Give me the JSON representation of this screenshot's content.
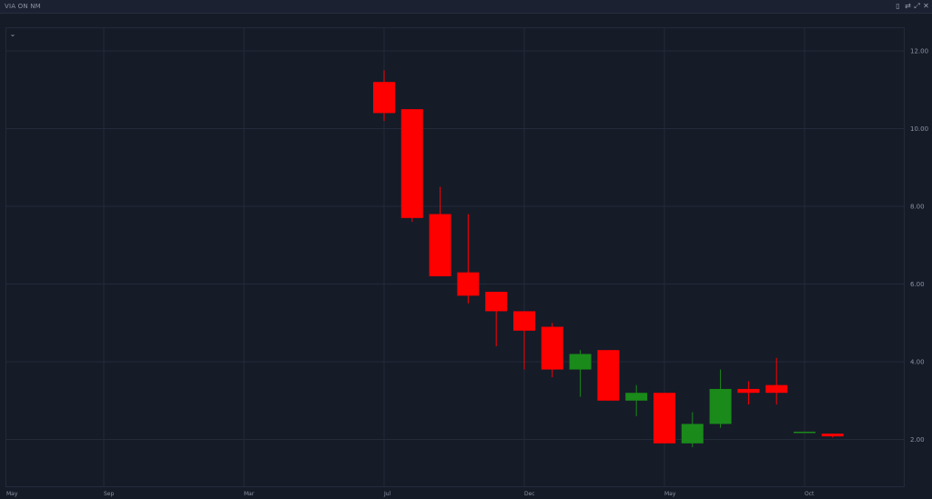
{
  "window": {
    "title": "VIA ON NM",
    "controls": [
      {
        "name": "bookmark-icon",
        "glyph": "▯"
      },
      {
        "name": "settings-icon",
        "glyph": "⇄"
      },
      {
        "name": "expand-icon",
        "glyph": "⤢"
      },
      {
        "name": "close-icon",
        "glyph": "✕"
      }
    ],
    "collapse_glyph": "⌄"
  },
  "chart_data": {
    "type": "candlestick",
    "title": "VIA ON NM",
    "ylim": [
      0.8,
      12.4
    ],
    "yticks": [
      2,
      4,
      6,
      8,
      10,
      12
    ],
    "ytick_labels": [
      "2.00",
      "4.00",
      "6.00",
      "8.00",
      "10.00",
      "12.00"
    ],
    "xtick_labels": [
      "May",
      "Sep",
      "Mar",
      "Jul",
      "Dec",
      "May",
      "Oct"
    ],
    "colors": {
      "up": "#1a8a1a",
      "down": "#ff0000",
      "grid": "#232a39",
      "background": "#161b28"
    },
    "grid": true,
    "candles": [
      {
        "index": 0,
        "open": 11.2,
        "high": 11.5,
        "low": 10.2,
        "close": 10.4
      },
      {
        "index": 1,
        "open": 10.5,
        "high": 10.5,
        "low": 7.6,
        "close": 7.7
      },
      {
        "index": 2,
        "open": 7.8,
        "high": 8.5,
        "low": 6.2,
        "close": 6.2
      },
      {
        "index": 3,
        "open": 6.3,
        "high": 7.8,
        "low": 5.5,
        "close": 5.7
      },
      {
        "index": 4,
        "open": 5.8,
        "high": 5.8,
        "low": 4.4,
        "close": 5.3
      },
      {
        "index": 5,
        "open": 5.3,
        "high": 5.3,
        "low": 3.8,
        "close": 4.8
      },
      {
        "index": 6,
        "open": 4.9,
        "high": 5.0,
        "low": 3.6,
        "close": 3.8
      },
      {
        "index": 7,
        "open": 3.8,
        "high": 4.3,
        "low": 3.1,
        "close": 4.2
      },
      {
        "index": 8,
        "open": 4.3,
        "high": 4.3,
        "low": 3.0,
        "close": 3.0
      },
      {
        "index": 9,
        "open": 3.0,
        "high": 3.4,
        "low": 2.6,
        "close": 3.2
      },
      {
        "index": 10,
        "open": 3.2,
        "high": 3.2,
        "low": 1.9,
        "close": 1.9
      },
      {
        "index": 11,
        "open": 1.9,
        "high": 2.7,
        "low": 1.8,
        "close": 2.4
      },
      {
        "index": 12,
        "open": 2.4,
        "high": 3.8,
        "low": 2.3,
        "close": 3.3
      },
      {
        "index": 13,
        "open": 3.3,
        "high": 3.5,
        "low": 2.9,
        "close": 3.2
      },
      {
        "index": 14,
        "open": 3.4,
        "high": 4.1,
        "low": 2.9,
        "close": 3.2
      },
      {
        "index": 15,
        "open": 2.2,
        "high": 2.2,
        "low": 2.2,
        "close": 2.2
      },
      {
        "index": 16,
        "open": 2.15,
        "high": 2.15,
        "low": 2.05,
        "close": 2.08
      }
    ]
  }
}
